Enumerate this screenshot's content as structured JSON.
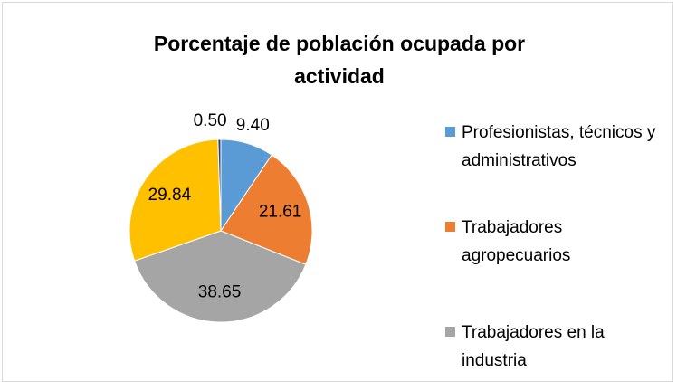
{
  "chart_data": {
    "type": "pie",
    "title": "Porcentaje de población ocupada por actividad",
    "categories": [
      "Profesionistas, técnicos y administrativos",
      "Trabajadores agropecuarios",
      "Trabajadores en la industria",
      null,
      null
    ],
    "values": [
      9.4,
      21.61,
      38.65,
      29.84,
      0.5
    ],
    "value_labels": [
      "9.40",
      "21.61",
      "38.65",
      "29.84",
      "0.50"
    ],
    "colors": [
      "#5b9bd5",
      "#ed7d31",
      "#a5a5a5",
      "#ffc000",
      "#264478"
    ],
    "legend": "right"
  }
}
